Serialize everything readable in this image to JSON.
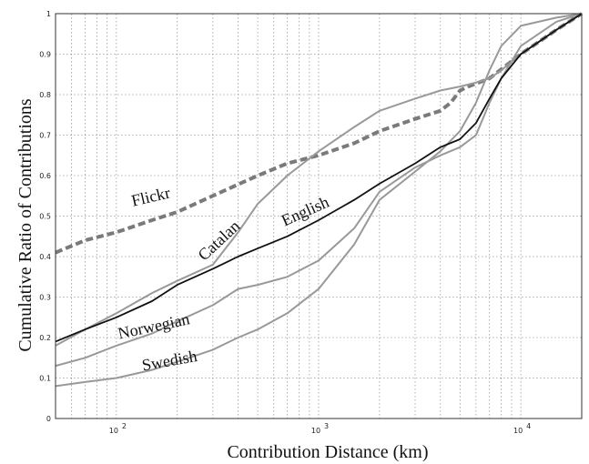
{
  "chart_data": {
    "type": "line",
    "title": "",
    "xlabel": "Contribution Distance (km)",
    "ylabel": "Cumulative Ratio of Contributions",
    "x_scale": "log",
    "xlim": [
      50,
      20000
    ],
    "ylim": [
      0,
      1
    ],
    "grid": true,
    "x_tick_labels": [
      {
        "value": 100,
        "base": "10",
        "exp": "2"
      },
      {
        "value": 1000,
        "base": "10",
        "exp": "3"
      },
      {
        "value": 10000,
        "base": "10",
        "exp": "4"
      }
    ],
    "y_tick_labels": [
      "0",
      "0.1",
      "0.2",
      "0.3",
      "0.4",
      "0.5",
      "0.6",
      "0.7",
      "0.8",
      "0.9",
      "1"
    ],
    "series": [
      {
        "name": "Flickr",
        "color": "#7a7a7a",
        "style": "dashed",
        "x": [
          50,
          70,
          100,
          150,
          200,
          300,
          500,
          700,
          1000,
          1500,
          2000,
          3000,
          4000,
          4500,
          5000,
          5500,
          7000,
          10000,
          15000,
          20000
        ],
        "y": [
          0.41,
          0.44,
          0.46,
          0.49,
          0.51,
          0.55,
          0.6,
          0.63,
          0.65,
          0.68,
          0.71,
          0.74,
          0.76,
          0.78,
          0.81,
          0.82,
          0.84,
          0.9,
          0.96,
          1.0
        ]
      },
      {
        "name": "Catalan",
        "color": "#999999",
        "style": "solid",
        "x": [
          50,
          70,
          100,
          150,
          200,
          300,
          400,
          500,
          700,
          1000,
          1500,
          2000,
          3000,
          4000,
          5000,
          6000,
          7000,
          8000,
          10000,
          15000,
          20000
        ],
        "y": [
          0.18,
          0.22,
          0.26,
          0.31,
          0.34,
          0.38,
          0.46,
          0.53,
          0.6,
          0.66,
          0.72,
          0.76,
          0.79,
          0.81,
          0.82,
          0.83,
          0.84,
          0.86,
          0.9,
          0.96,
          1.0
        ]
      },
      {
        "name": "English",
        "color": "#111111",
        "style": "solid",
        "x": [
          50,
          70,
          100,
          150,
          200,
          300,
          400,
          500,
          700,
          1000,
          1500,
          2000,
          3000,
          4000,
          5000,
          6000,
          7000,
          8000,
          10000,
          15000,
          20000
        ],
        "y": [
          0.19,
          0.22,
          0.25,
          0.29,
          0.33,
          0.37,
          0.4,
          0.42,
          0.45,
          0.49,
          0.54,
          0.58,
          0.63,
          0.67,
          0.69,
          0.73,
          0.79,
          0.84,
          0.9,
          0.96,
          1.0
        ]
      },
      {
        "name": "Norwegian",
        "color": "#999999",
        "style": "solid",
        "x": [
          50,
          70,
          100,
          150,
          200,
          300,
          400,
          500,
          700,
          1000,
          1500,
          2000,
          3000,
          4000,
          5000,
          6000,
          7000,
          8000,
          10000,
          15000,
          20000
        ],
        "y": [
          0.13,
          0.15,
          0.18,
          0.21,
          0.24,
          0.28,
          0.32,
          0.33,
          0.35,
          0.39,
          0.47,
          0.56,
          0.62,
          0.65,
          0.67,
          0.7,
          0.78,
          0.84,
          0.92,
          0.98,
          1.0
        ]
      },
      {
        "name": "Swedish",
        "color": "#999999",
        "style": "solid",
        "x": [
          50,
          70,
          100,
          150,
          200,
          300,
          400,
          500,
          700,
          1000,
          1500,
          2000,
          3000,
          4000,
          5000,
          6000,
          7000,
          8000,
          10000,
          15000,
          20000
        ],
        "y": [
          0.08,
          0.09,
          0.1,
          0.12,
          0.14,
          0.17,
          0.2,
          0.22,
          0.26,
          0.32,
          0.43,
          0.54,
          0.61,
          0.66,
          0.71,
          0.78,
          0.86,
          0.92,
          0.97,
          0.99,
          1.0
        ]
      }
    ]
  }
}
